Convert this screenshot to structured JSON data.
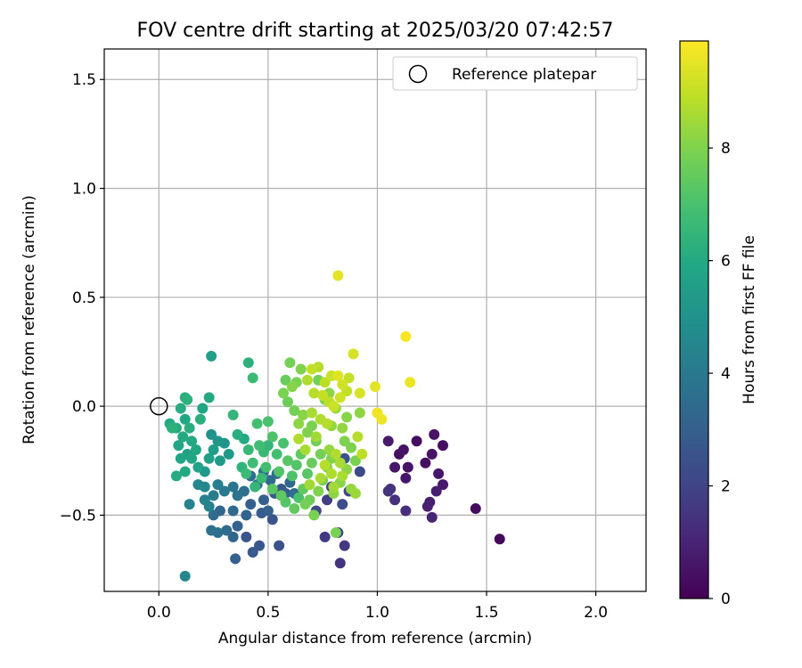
{
  "chart_data": {
    "type": "scatter",
    "title": "FOV centre drift starting at 2025/03/20 07:42:57",
    "xlabel": "Angular distance from reference (arcmin)",
    "ylabel": "Rotation from reference (arcmin)",
    "xlim": [
      -0.25,
      2.23
    ],
    "ylim": [
      -0.85,
      1.64
    ],
    "xticks": [
      0.0,
      0.5,
      1.0,
      1.5,
      2.0
    ],
    "xtick_labels": [
      "0.0",
      "0.5",
      "1.0",
      "1.5",
      "2.0"
    ],
    "yticks": [
      -0.5,
      0.0,
      0.5,
      1.0,
      1.5
    ],
    "ytick_labels": [
      "−0.5",
      "0.0",
      "0.5",
      "1.0",
      "1.5"
    ],
    "grid": true,
    "legend": {
      "placement": "top-right",
      "entries": [
        {
          "label": "Reference platepar",
          "marker": "open-circle"
        }
      ]
    },
    "reference_point": {
      "x": 0.0,
      "y": 0.0
    },
    "colorbar": {
      "label": "Hours from first FF file",
      "colormap": "viridis",
      "range": [
        0,
        9.9
      ],
      "ticks": [
        0,
        2,
        4,
        6,
        8
      ],
      "tick_labels": [
        "0",
        "2",
        "4",
        "6",
        "8"
      ]
    },
    "points": [
      [
        1.56,
        -0.61,
        0.2
      ],
      [
        1.45,
        -0.47,
        0.3
      ],
      [
        1.3,
        -0.18,
        0.4
      ],
      [
        1.26,
        -0.13,
        0.5
      ],
      [
        1.22,
        -0.26,
        0.4
      ],
      [
        1.25,
        -0.22,
        0.5
      ],
      [
        1.18,
        -0.16,
        0.3
      ],
      [
        1.14,
        -0.28,
        0.5
      ],
      [
        1.1,
        -0.22,
        0.4
      ],
      [
        1.12,
        -0.2,
        0.5
      ],
      [
        1.08,
        -0.28,
        0.6
      ],
      [
        1.13,
        -0.33,
        0.6
      ],
      [
        1.05,
        -0.16,
        0.7
      ],
      [
        1.28,
        -0.31,
        0.6
      ],
      [
        1.3,
        -0.36,
        0.7
      ],
      [
        1.27,
        -0.39,
        0.8
      ],
      [
        1.24,
        -0.44,
        0.8
      ],
      [
        1.25,
        -0.51,
        1.0
      ],
      [
        1.23,
        -0.46,
        0.9
      ],
      [
        1.13,
        -0.48,
        1.3
      ],
      [
        1.08,
        -0.43,
        1.4
      ],
      [
        1.05,
        -0.39,
        1.5
      ],
      [
        1.06,
        -0.38,
        1.4
      ],
      [
        0.83,
        -0.72,
        1.5
      ],
      [
        0.85,
        -0.64,
        1.6
      ],
      [
        0.76,
        -0.6,
        1.7
      ],
      [
        0.82,
        -0.58,
        2.0
      ],
      [
        0.77,
        -0.43,
        1.8
      ],
      [
        0.72,
        -0.48,
        2.2
      ],
      [
        0.79,
        -0.37,
        1.9
      ],
      [
        0.84,
        -0.45,
        2.3
      ],
      [
        0.85,
        -0.24,
        2.5
      ],
      [
        0.87,
        -0.39,
        2.0
      ],
      [
        0.92,
        -0.3,
        2.2
      ],
      [
        0.55,
        -0.64,
        2.5
      ],
      [
        0.52,
        -0.52,
        2.6
      ],
      [
        0.46,
        -0.64,
        2.7
      ],
      [
        0.43,
        -0.67,
        2.8
      ],
      [
        0.4,
        -0.6,
        2.6
      ],
      [
        0.35,
        -0.7,
        3.0
      ],
      [
        0.34,
        -0.6,
        3.2
      ],
      [
        0.36,
        -0.55,
        3.1
      ],
      [
        0.31,
        -0.57,
        3.4
      ],
      [
        0.27,
        -0.58,
        3.6
      ],
      [
        0.24,
        -0.57,
        3.7
      ],
      [
        0.25,
        -0.5,
        3.5
      ],
      [
        0.28,
        -0.48,
        3.3
      ],
      [
        0.34,
        -0.48,
        3.4
      ],
      [
        0.4,
        -0.5,
        3.2
      ],
      [
        0.42,
        -0.45,
        3.0
      ],
      [
        0.47,
        -0.49,
        2.9
      ],
      [
        0.5,
        -0.48,
        3.1
      ],
      [
        0.48,
        -0.43,
        3.0
      ],
      [
        0.53,
        -0.4,
        2.8
      ],
      [
        0.56,
        -0.38,
        2.7
      ],
      [
        0.58,
        -0.4,
        2.9
      ],
      [
        0.6,
        -0.35,
        3.3
      ],
      [
        0.62,
        -0.4,
        3.5
      ],
      [
        0.39,
        -0.39,
        3.6
      ],
      [
        0.36,
        -0.41,
        3.8
      ],
      [
        0.34,
        -0.37,
        3.9
      ],
      [
        0.3,
        -0.39,
        4.0
      ],
      [
        0.27,
        -0.36,
        4.2
      ],
      [
        0.25,
        -0.41,
        4.1
      ],
      [
        0.23,
        -0.46,
        4.3
      ],
      [
        0.21,
        -0.43,
        4.4
      ],
      [
        0.18,
        -0.36,
        4.5
      ],
      [
        0.21,
        -0.37,
        4.6
      ],
      [
        0.14,
        -0.45,
        4.4
      ],
      [
        0.12,
        -0.78,
        4.5
      ],
      [
        0.42,
        -0.32,
        3.5
      ],
      [
        0.45,
        -0.36,
        3.7
      ],
      [
        0.48,
        -0.3,
        3.8
      ],
      [
        0.51,
        -0.34,
        3.4
      ],
      [
        0.54,
        -0.31,
        3.6
      ],
      [
        0.24,
        -0.13,
        5.0
      ],
      [
        0.27,
        -0.16,
        5.2
      ],
      [
        0.3,
        -0.17,
        5.1
      ],
      [
        0.32,
        -0.22,
        5.3
      ],
      [
        0.28,
        -0.25,
        5.4
      ],
      [
        0.25,
        -0.2,
        5.5
      ],
      [
        0.23,
        -0.24,
        5.6
      ],
      [
        0.21,
        -0.3,
        5.3
      ],
      [
        0.18,
        -0.28,
        5.7
      ],
      [
        0.15,
        -0.24,
        5.8
      ],
      [
        0.13,
        -0.22,
        5.6
      ],
      [
        0.1,
        -0.24,
        5.9
      ],
      [
        0.12,
        -0.3,
        6.0
      ],
      [
        0.08,
        -0.32,
        6.1
      ],
      [
        0.09,
        -0.18,
        5.8
      ],
      [
        0.11,
        -0.14,
        6.0
      ],
      [
        0.14,
        -0.1,
        6.2
      ],
      [
        0.12,
        -0.06,
        5.9
      ],
      [
        0.1,
        -0.01,
        6.1
      ],
      [
        0.13,
        0.03,
        6.3
      ],
      [
        0.12,
        0.04,
        6.2
      ],
      [
        0.15,
        -0.16,
        6.0
      ],
      [
        0.17,
        -0.2,
        5.9
      ],
      [
        0.19,
        -0.06,
        6.2
      ],
      [
        0.23,
        0.04,
        6.0
      ],
      [
        0.24,
        0.23,
        5.6
      ],
      [
        0.2,
        -0.01,
        5.8
      ],
      [
        0.08,
        -0.1,
        6.1
      ],
      [
        0.05,
        -0.08,
        6.0
      ],
      [
        0.06,
        -0.1,
        6.3
      ],
      [
        0.34,
        -0.04,
        6.5
      ],
      [
        0.36,
        -0.13,
        6.2
      ],
      [
        0.39,
        -0.15,
        6.0
      ],
      [
        0.38,
        -0.28,
        6.4
      ],
      [
        0.41,
        -0.2,
        6.6
      ],
      [
        0.43,
        -0.26,
        6.8
      ],
      [
        0.4,
        -0.31,
        6.7
      ],
      [
        0.41,
        0.2,
        6.3
      ],
      [
        0.43,
        0.13,
        6.7
      ],
      [
        0.45,
        -0.08,
        6.9
      ],
      [
        0.46,
        -0.18,
        6.8
      ],
      [
        0.48,
        -0.21,
        6.6
      ],
      [
        0.5,
        -0.18,
        6.5
      ],
      [
        0.49,
        -0.28,
        6.9
      ],
      [
        0.47,
        -0.33,
        6.7
      ],
      [
        0.44,
        -0.37,
        6.5
      ],
      [
        0.5,
        -0.07,
        7.0
      ],
      [
        0.52,
        -0.14,
        7.1
      ],
      [
        0.54,
        -0.22,
        6.9
      ],
      [
        0.55,
        -0.3,
        7.2
      ],
      [
        0.57,
        -0.17,
        7.0
      ],
      [
        0.59,
        -0.25,
        7.3
      ],
      [
        0.61,
        -0.32,
        7.1
      ],
      [
        0.63,
        -0.27,
        7.2
      ],
      [
        0.65,
        -0.22,
        7.4
      ],
      [
        0.66,
        -0.38,
        7.5
      ],
      [
        0.68,
        -0.31,
        7.3
      ],
      [
        0.7,
        -0.26,
        7.6
      ],
      [
        0.56,
        -0.41,
        7.4
      ],
      [
        0.58,
        -0.44,
        7.2
      ],
      [
        0.52,
        -0.38,
        7.3
      ],
      [
        0.64,
        -0.42,
        7.0
      ],
      [
        0.69,
        -0.43,
        7.7
      ],
      [
        0.62,
        -0.47,
        7.5
      ],
      [
        0.71,
        -0.5,
        7.9
      ],
      [
        0.67,
        -0.45,
        7.8
      ],
      [
        0.73,
        -0.39,
        8.0
      ],
      [
        0.75,
        -0.34,
        7.9
      ],
      [
        0.77,
        -0.28,
        8.1
      ],
      [
        0.79,
        -0.24,
        8.0
      ],
      [
        0.74,
        -0.22,
        7.8
      ],
      [
        0.72,
        -0.16,
        7.7
      ],
      [
        0.7,
        -0.09,
        7.9
      ],
      [
        0.68,
        -0.12,
        8.0
      ],
      [
        0.66,
        -0.04,
        8.1
      ],
      [
        0.64,
        -0.08,
        8.2
      ],
      [
        0.62,
        -0.02,
        7.8
      ],
      [
        0.59,
        0.02,
        7.7
      ],
      [
        0.57,
        0.06,
        7.9
      ],
      [
        0.6,
        0.2,
        7.8
      ],
      [
        0.65,
        0.17,
        8.0
      ],
      [
        0.61,
        0.09,
        8.1
      ],
      [
        0.63,
        0.11,
        7.9
      ],
      [
        0.58,
        0.12,
        7.6
      ],
      [
        0.81,
        -0.58,
        7.9
      ],
      [
        0.83,
        -0.35,
        8.1
      ],
      [
        0.86,
        -0.29,
        8.2
      ],
      [
        0.88,
        -0.19,
        8.0
      ],
      [
        0.9,
        -0.25,
        7.9
      ],
      [
        0.8,
        -0.4,
        8.2
      ],
      [
        0.79,
        -0.09,
        8.3
      ],
      [
        0.81,
        -0.01,
        8.4
      ],
      [
        0.78,
        0.06,
        8.2
      ],
      [
        0.76,
        0.03,
        8.0
      ],
      [
        0.84,
        -0.1,
        8.3
      ],
      [
        0.86,
        -0.05,
        8.1
      ],
      [
        0.85,
        -0.16,
        8.0
      ],
      [
        0.92,
        -0.03,
        8.2
      ],
      [
        0.9,
        -0.4,
        8.4
      ],
      [
        0.88,
        -0.38,
        8.3
      ],
      [
        0.73,
        0.12,
        7.8
      ],
      [
        0.78,
        -0.2,
        8.3
      ],
      [
        0.82,
        0.6,
        9.5
      ],
      [
        1.13,
        0.32,
        9.8
      ],
      [
        1.15,
        0.11,
        9.6
      ],
      [
        0.89,
        0.24,
        9.3
      ],
      [
        0.87,
        0.13,
        9.0
      ],
      [
        0.84,
        0.1,
        9.2
      ],
      [
        0.82,
        0.14,
        9.4
      ],
      [
        0.79,
        0.14,
        9.1
      ],
      [
        0.76,
        0.11,
        8.9
      ],
      [
        0.73,
        0.18,
        8.8
      ],
      [
        0.7,
        0.17,
        9.0
      ],
      [
        0.68,
        0.12,
        8.7
      ],
      [
        0.71,
        0.06,
        8.8
      ],
      [
        0.75,
        0.05,
        9.0
      ],
      [
        0.78,
        0.02,
        8.9
      ],
      [
        0.8,
        0.0,
        9.1
      ],
      [
        0.83,
        0.04,
        9.2
      ],
      [
        0.86,
        0.07,
        9.0
      ],
      [
        0.92,
        0.06,
        9.3
      ],
      [
        0.99,
        0.09,
        9.5
      ],
      [
        1.0,
        -0.03,
        9.7
      ],
      [
        1.02,
        -0.06,
        9.6
      ],
      [
        0.74,
        -0.06,
        8.7
      ],
      [
        0.77,
        -0.08,
        8.8
      ],
      [
        0.7,
        -0.03,
        8.6
      ],
      [
        0.72,
        -0.14,
        8.5
      ],
      [
        0.81,
        -0.22,
        8.7
      ],
      [
        0.83,
        -0.26,
        8.6
      ],
      [
        0.91,
        -0.14,
        8.8
      ],
      [
        0.93,
        -0.22,
        8.9
      ],
      [
        0.79,
        -0.31,
        8.7
      ],
      [
        0.76,
        -0.27,
        8.8
      ],
      [
        0.74,
        -0.33,
        8.6
      ],
      [
        0.69,
        -0.36,
        8.5
      ],
      [
        0.67,
        -0.2,
        8.6
      ],
      [
        0.64,
        -0.15,
        8.7
      ],
      [
        0.8,
        -0.37,
        8.5
      ],
      [
        0.84,
        -0.32,
        8.6
      ]
    ]
  }
}
